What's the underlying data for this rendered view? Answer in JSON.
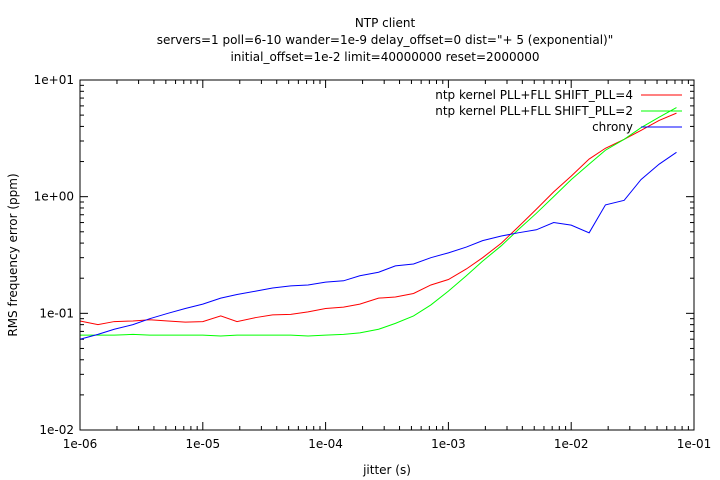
{
  "chart_data": {
    "type": "line",
    "title": "NTP client",
    "subtitle_lines": [
      "servers=1 poll=6-10 wander=1e-9 delay_offset=0 dist=\"+ 5 (exponential)\"",
      "initial_offset=1e-2 limit=40000000 reset=2000000"
    ],
    "xlabel": "jitter (s)",
    "ylabel": "RMS frequency error (ppm)",
    "x_scale": "log",
    "y_scale": "log",
    "xlim": [
      1e-06,
      0.1
    ],
    "ylim": [
      0.01,
      10
    ],
    "x_ticks": [
      {
        "value": 1e-06,
        "label": "1e-06"
      },
      {
        "value": 1e-05,
        "label": "1e-05"
      },
      {
        "value": 0.0001,
        "label": "1e-04"
      },
      {
        "value": 0.001,
        "label": "1e-03"
      },
      {
        "value": 0.01,
        "label": "1e-02"
      },
      {
        "value": 0.1,
        "label": "1e-01"
      }
    ],
    "y_ticks": [
      {
        "value": 0.01,
        "label": "1e-02"
      },
      {
        "value": 0.1,
        "label": "1e-01"
      },
      {
        "value": 1,
        "label": "1e+00"
      },
      {
        "value": 10,
        "label": "1e+01"
      }
    ],
    "grid": false,
    "legend_position": "top-right",
    "x": [
      1e-06,
      1.4e-06,
      1.9e-06,
      2.7e-06,
      3.7e-06,
      5.2e-06,
      7.2e-06,
      1e-05,
      1.4e-05,
      1.9e-05,
      2.7e-05,
      3.7e-05,
      5.2e-05,
      7.2e-05,
      0.0001,
      0.00014,
      0.00019,
      0.00027,
      0.00037,
      0.00052,
      0.00072,
      0.001,
      0.0014,
      0.0019,
      0.0027,
      0.0037,
      0.0052,
      0.0072,
      0.01,
      0.014,
      0.019,
      0.027,
      0.037,
      0.052,
      0.072
    ],
    "series": [
      {
        "name": "ntp kernel PLL+FLL SHIFT_PLL=4",
        "color": "#ff0000",
        "values": [
          0.086,
          0.08,
          0.085,
          0.086,
          0.088,
          0.086,
          0.084,
          0.085,
          0.095,
          0.085,
          0.092,
          0.097,
          0.098,
          0.103,
          0.11,
          0.113,
          0.12,
          0.135,
          0.138,
          0.148,
          0.175,
          0.195,
          0.24,
          0.3,
          0.4,
          0.55,
          0.78,
          1.1,
          1.5,
          2.1,
          2.6,
          3.1,
          3.7,
          4.5,
          5.2
        ]
      },
      {
        "name": "ntp kernel PLL+FLL SHIFT_PLL=2",
        "color": "#00ff00",
        "values": [
          0.065,
          0.065,
          0.065,
          0.066,
          0.065,
          0.065,
          0.065,
          0.065,
          0.064,
          0.065,
          0.065,
          0.065,
          0.065,
          0.064,
          0.065,
          0.066,
          0.068,
          0.073,
          0.082,
          0.095,
          0.118,
          0.155,
          0.21,
          0.28,
          0.38,
          0.52,
          0.72,
          1.0,
          1.4,
          1.9,
          2.5,
          3.1,
          3.9,
          4.8,
          5.8
        ]
      },
      {
        "name": "chrony",
        "color": "#0000ff",
        "values": [
          0.06,
          0.066,
          0.073,
          0.08,
          0.09,
          0.1,
          0.11,
          0.12,
          0.135,
          0.145,
          0.155,
          0.165,
          0.172,
          0.175,
          0.185,
          0.19,
          0.21,
          0.225,
          0.255,
          0.265,
          0.3,
          0.33,
          0.37,
          0.42,
          0.46,
          0.49,
          0.52,
          0.6,
          0.57,
          0.49,
          0.85,
          0.93,
          1.4,
          1.9,
          2.4
        ]
      }
    ]
  }
}
